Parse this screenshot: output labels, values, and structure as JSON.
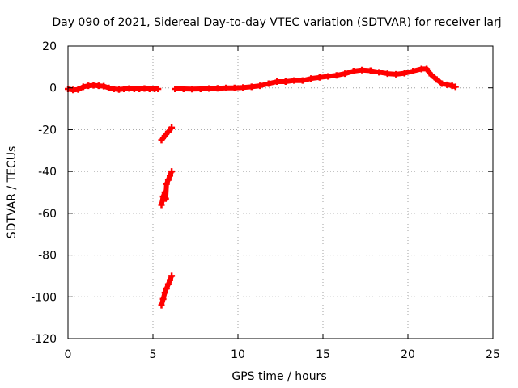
{
  "chart_data": {
    "type": "scatter",
    "title": "Day 090 of 2021, Sidereal Day-to-day VTEC variation (SDTVAR) for receiver larj",
    "xlabel": "GPS time / hours",
    "ylabel": "SDTVAR / TECUs",
    "xlim": [
      0,
      25
    ],
    "ylim": [
      -120,
      20
    ],
    "xticks": [
      0,
      5,
      10,
      15,
      20,
      25
    ],
    "yticks": [
      -120,
      -100,
      -80,
      -60,
      -40,
      -20,
      0,
      20
    ],
    "grid": true,
    "series": [
      {
        "name": "SDTVAR",
        "color": "#ff0000",
        "segments": [
          {
            "x": [
              0.0,
              0.3,
              0.6,
              0.9,
              1.2,
              1.5,
              1.8,
              2.1,
              2.4,
              2.7,
              3.0,
              3.3,
              3.6,
              3.9,
              4.2,
              4.5,
              4.8,
              5.1,
              5.3
            ],
            "y": [
              -0.5,
              -1.0,
              -0.8,
              0.5,
              1.0,
              1.2,
              1.0,
              0.8,
              0.0,
              -0.5,
              -0.8,
              -0.5,
              -0.3,
              -0.5,
              -0.5,
              -0.3,
              -0.5,
              -0.5,
              -0.5
            ]
          },
          {
            "x": [
              6.3,
              6.8,
              7.3,
              7.8,
              8.3,
              8.8,
              9.3,
              9.8,
              10.3,
              10.8,
              11.3,
              11.8,
              12.3,
              12.8,
              13.3,
              13.8,
              14.3,
              14.8,
              15.3,
              15.8,
              16.3,
              16.8,
              17.3,
              17.8,
              18.3,
              18.8,
              19.3,
              19.8,
              20.3,
              20.8,
              21.1,
              21.4,
              21.7,
              22.0,
              22.3,
              22.6,
              22.8
            ],
            "y": [
              -0.5,
              -0.5,
              -0.6,
              -0.5,
              -0.3,
              -0.2,
              0.0,
              0.0,
              0.2,
              0.5,
              1.0,
              2.0,
              3.0,
              3.0,
              3.5,
              3.5,
              4.5,
              5.0,
              5.5,
              6.0,
              6.8,
              8.0,
              8.5,
              8.2,
              7.5,
              6.8,
              6.5,
              7.0,
              8.0,
              9.0,
              9.0,
              6.0,
              4.0,
              2.0,
              1.5,
              1.0,
              0.5
            ]
          },
          {
            "x": [
              5.5,
              5.7,
              5.9,
              6.1
            ],
            "y": [
              -25,
              -23,
              -21,
              -19
            ]
          },
          {
            "x": [
              5.5,
              5.6,
              5.7,
              5.75,
              5.8,
              5.9,
              6.0,
              6.1
            ],
            "y": [
              -56,
              -52,
              -50,
              -53,
              -46,
              -44,
              -42,
              -40
            ]
          },
          {
            "x": [
              5.5,
              5.6,
              5.7,
              5.8,
              5.9,
              6.0,
              6.1
            ],
            "y": [
              -104,
              -101,
              -98,
              -96,
              -94,
              -92,
              -90
            ]
          }
        ]
      }
    ]
  }
}
